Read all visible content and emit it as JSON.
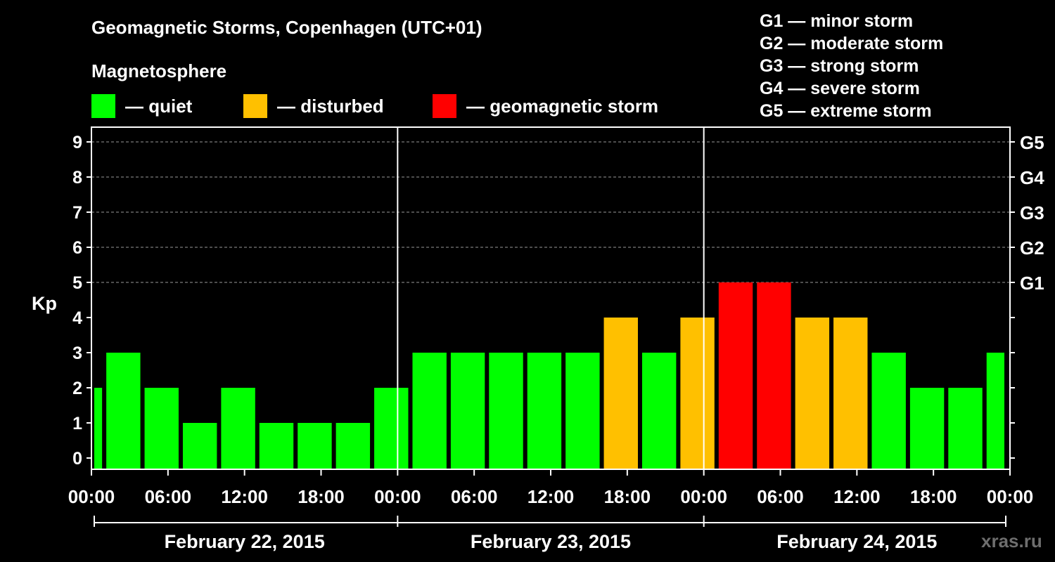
{
  "title": "Geomagnetic Storms, Copenhagen (UTC+01)",
  "legend_title": "Magnetosphere",
  "legend": [
    {
      "label": "— quiet",
      "color": "#00ff00"
    },
    {
      "label": "— disturbed",
      "color": "#ffc000"
    },
    {
      "label": "— geomagnetic storm",
      "color": "#ff0000"
    }
  ],
  "g_scale": [
    "G1 — minor storm",
    "G2 — moderate storm",
    "G3 — strong storm",
    "G4 — severe storm",
    "G5 — extreme storm"
  ],
  "watermark": "xras.ru",
  "chart_data": {
    "type": "bar",
    "ylabel": "Kp",
    "ylim": [
      0,
      9
    ],
    "y_ticks": [
      "0",
      "1",
      "2",
      "3",
      "4",
      "5",
      "6",
      "7",
      "8",
      "9"
    ],
    "right_axis_labels": [
      {
        "kp": 5,
        "label": "G1"
      },
      {
        "kp": 6,
        "label": "G2"
      },
      {
        "kp": 7,
        "label": "G3"
      },
      {
        "kp": 8,
        "label": "G4"
      },
      {
        "kp": 9,
        "label": "G5"
      }
    ],
    "x_tick_labels": [
      "00:00",
      "06:00",
      "12:00",
      "18:00",
      "00:00",
      "06:00",
      "12:00",
      "18:00",
      "00:00",
      "06:00",
      "12:00",
      "18:00",
      "00:00"
    ],
    "dates": [
      "February 22, 2015",
      "February 23, 2015",
      "February 24, 2015"
    ],
    "grid": "horizontal dashed",
    "bars": [
      {
        "start": "2015-02-22 00:00",
        "end": "2015-02-22 01:00",
        "kp": 2
      },
      {
        "start": "2015-02-22 01:00",
        "end": "2015-02-22 04:00",
        "kp": 3
      },
      {
        "start": "2015-02-22 04:00",
        "end": "2015-02-22 07:00",
        "kp": 2
      },
      {
        "start": "2015-02-22 07:00",
        "end": "2015-02-22 10:00",
        "kp": 1
      },
      {
        "start": "2015-02-22 10:00",
        "end": "2015-02-22 13:00",
        "kp": 2
      },
      {
        "start": "2015-02-22 13:00",
        "end": "2015-02-22 16:00",
        "kp": 1
      },
      {
        "start": "2015-02-22 16:00",
        "end": "2015-02-22 19:00",
        "kp": 1
      },
      {
        "start": "2015-02-22 19:00",
        "end": "2015-02-22 22:00",
        "kp": 1
      },
      {
        "start": "2015-02-22 22:00",
        "end": "2015-02-23 01:00",
        "kp": 2
      },
      {
        "start": "2015-02-23 01:00",
        "end": "2015-02-23 04:00",
        "kp": 3
      },
      {
        "start": "2015-02-23 04:00",
        "end": "2015-02-23 07:00",
        "kp": 3
      },
      {
        "start": "2015-02-23 07:00",
        "end": "2015-02-23 10:00",
        "kp": 3
      },
      {
        "start": "2015-02-23 10:00",
        "end": "2015-02-23 13:00",
        "kp": 3
      },
      {
        "start": "2015-02-23 13:00",
        "end": "2015-02-23 16:00",
        "kp": 3
      },
      {
        "start": "2015-02-23 16:00",
        "end": "2015-02-23 19:00",
        "kp": 4
      },
      {
        "start": "2015-02-23 19:00",
        "end": "2015-02-23 22:00",
        "kp": 3
      },
      {
        "start": "2015-02-23 22:00",
        "end": "2015-02-24 01:00",
        "kp": 4
      },
      {
        "start": "2015-02-24 01:00",
        "end": "2015-02-24 04:00",
        "kp": 5
      },
      {
        "start": "2015-02-24 04:00",
        "end": "2015-02-24 07:00",
        "kp": 5
      },
      {
        "start": "2015-02-24 07:00",
        "end": "2015-02-24 10:00",
        "kp": 4
      },
      {
        "start": "2015-02-24 10:00",
        "end": "2015-02-24 13:00",
        "kp": 4
      },
      {
        "start": "2015-02-24 13:00",
        "end": "2015-02-24 16:00",
        "kp": 3
      },
      {
        "start": "2015-02-24 16:00",
        "end": "2015-02-24 19:00",
        "kp": 2
      },
      {
        "start": "2015-02-24 19:00",
        "end": "2015-02-24 22:00",
        "kp": 2
      },
      {
        "start": "2015-02-24 22:00",
        "end": "2015-02-25 00:00",
        "kp": 3
      }
    ]
  }
}
